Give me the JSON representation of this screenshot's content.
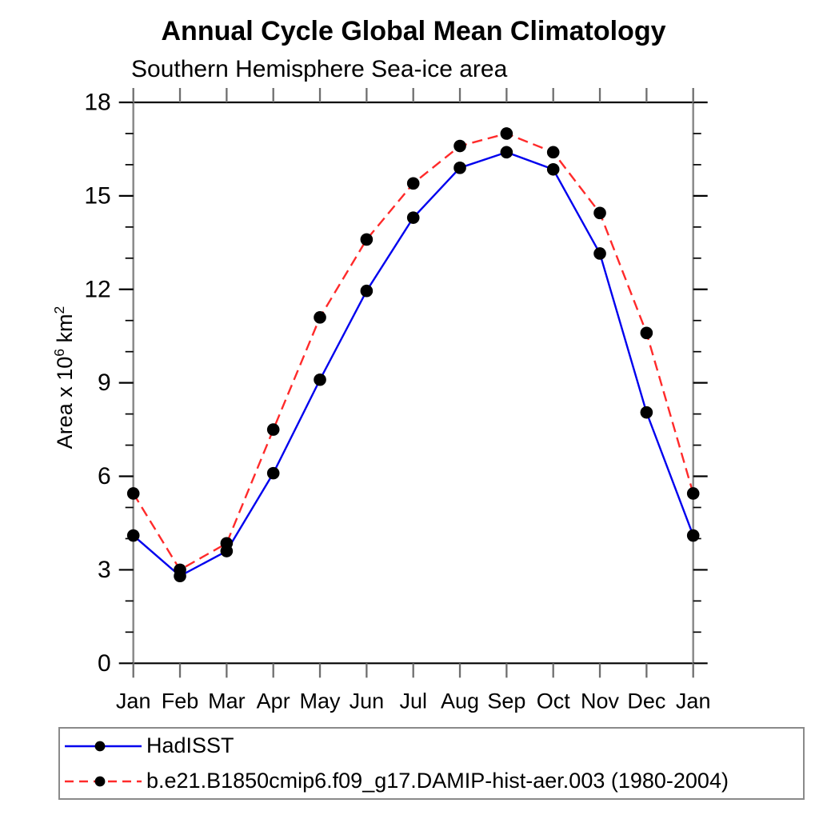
{
  "page": {
    "background_color": "#ffffff",
    "text_color": "#000000"
  },
  "chart": {
    "ylabel_parts": {
      "base": "Area x 10",
      "exp": "6",
      "mid": " km",
      "exp2": "2"
    }
  },
  "chart_data": {
    "type": "line",
    "title": "Annual Cycle Global Mean Climatology",
    "subtitle": "Southern Hemisphere Sea-ice area",
    "ylabel": "Area x 10⁶ km²",
    "xlabel": "",
    "categories": [
      "Jan",
      "Feb",
      "Mar",
      "Apr",
      "May",
      "Jun",
      "Jul",
      "Aug",
      "Sep",
      "Oct",
      "Nov",
      "Dec",
      "Jan"
    ],
    "series": [
      {
        "name": "HadISST",
        "line_style": "solid",
        "line_color": "#0000ee",
        "marker": "circle",
        "marker_color": "#000000",
        "values": [
          4.1,
          2.8,
          3.6,
          6.1,
          9.1,
          11.95,
          14.3,
          15.9,
          16.4,
          15.85,
          13.15,
          8.05,
          4.1
        ]
      },
      {
        "name": "b.e21.B1850cmip6.f09_g17.DAMIP-hist-aer.003 (1980-2004)",
        "line_style": "dashed",
        "line_color": "#ff2a2a",
        "marker": "circle",
        "marker_color": "#000000",
        "values": [
          5.45,
          3.0,
          3.85,
          7.5,
          11.1,
          13.6,
          15.4,
          16.6,
          17.0,
          16.4,
          14.45,
          10.6,
          5.45
        ]
      }
    ],
    "ylim": [
      0,
      18
    ],
    "ytick_major_interval": 3,
    "ytick_minor_interval": 1,
    "ytick_labels": [
      "0",
      "3",
      "6",
      "9",
      "12",
      "15",
      "18"
    ],
    "grid": false,
    "tick_direction": "out",
    "legend_position": "bottom-left-box"
  }
}
